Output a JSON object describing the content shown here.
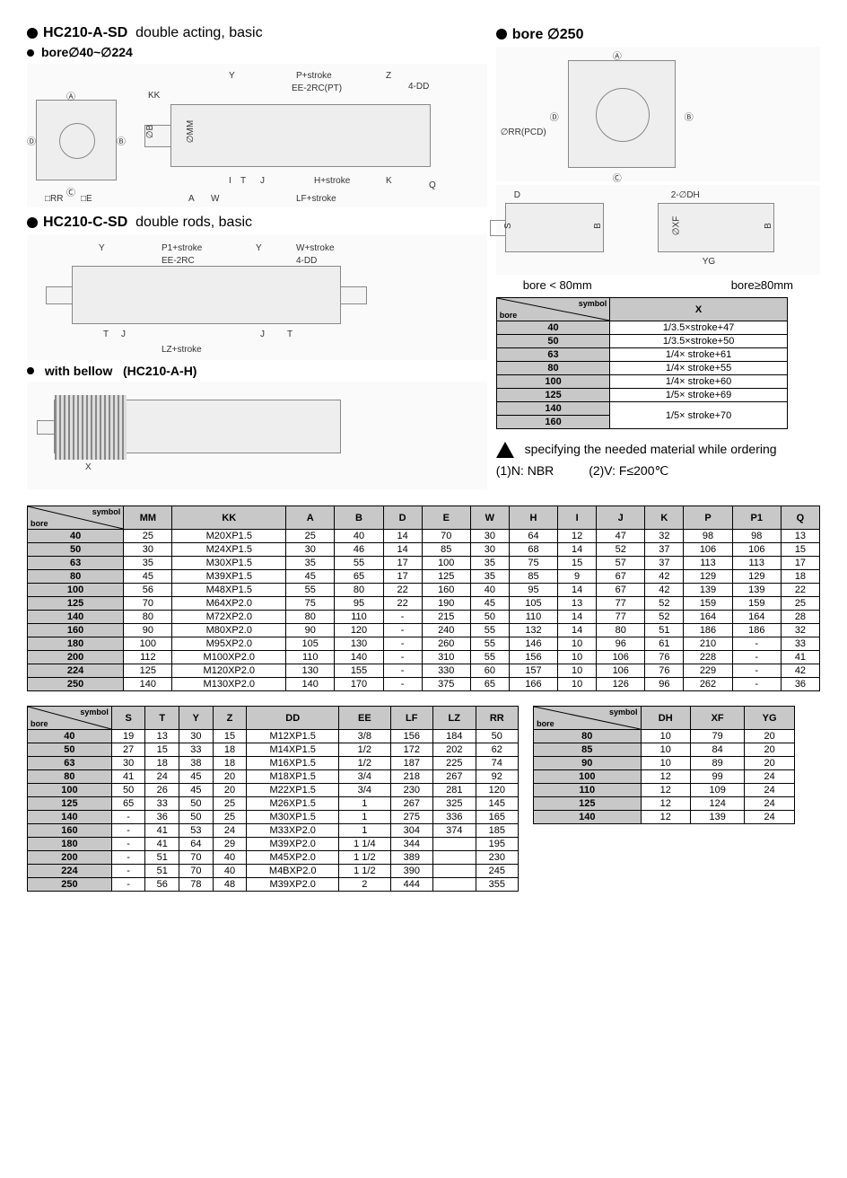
{
  "headings": {
    "h1": "HC210-A-SD",
    "h1_sub": "double acting, basic",
    "h1b": "bore∅40~∅224",
    "h2": "HC210-C-SD",
    "h2_sub": "double rods, basic",
    "h3": "with bellow",
    "h3_model": "(HC210-A-H)",
    "r1": "bore ∅250",
    "r2a": "bore < 80mm",
    "r2b": "bore≥80mm"
  },
  "diagram_ann": {
    "kk": "KK",
    "ob": "∅B",
    "omm": "∅MM",
    "rr": "□RR",
    "e": "□E",
    "aw": "A",
    "w": "W",
    "y": "Y",
    "p": "P+stroke",
    "z": "Z",
    "dd": "4-DD",
    "ee": "EE-2RC(PT)",
    "i": "I",
    "t": "T",
    "j": "J",
    "h": "H+stroke",
    "k": "K",
    "lf": "LF+stroke",
    "q": "Q",
    "p1": "P1+stroke",
    "ws": "W+stroke",
    "4dd": "4-DD",
    "ee2": "EE-2RC",
    "lz": "LZ+stroke",
    "x": "X",
    "rrpcd": "∅RR(PCD)",
    "ds": "D",
    "s": "S",
    "b2": "B",
    "2dh": "2-∅DH",
    "xf": "∅XF",
    "yg": "YG",
    "a": "Ⓐ",
    "b": "Ⓑ",
    "c": "Ⓒ",
    "d": "Ⓓ"
  },
  "note": {
    "text": "specifying the needed material while ordering",
    "opt1": "(1)N: NBR",
    "opt2": "(2)V: F≤200℃"
  },
  "small_table": {
    "col_hdr": "X",
    "rows": [
      [
        "40",
        "1/3.5×stroke+47"
      ],
      [
        "50",
        "1/3.5×stroke+50"
      ],
      [
        "63",
        "1/4× stroke+61"
      ],
      [
        "80",
        "1/4× stroke+55"
      ],
      [
        "100",
        "1/4× stroke+60"
      ],
      [
        "125",
        "1/5× stroke+69"
      ],
      [
        "140",
        "1/5× stroke+70"
      ],
      [
        "160",
        ""
      ]
    ]
  },
  "table1": {
    "cols": [
      "MM",
      "KK",
      "A",
      "B",
      "D",
      "E",
      "W",
      "H",
      "I",
      "J",
      "K",
      "P",
      "P1",
      "Q"
    ],
    "rows": [
      [
        "40",
        "25",
        "M20XP1.5",
        "25",
        "40",
        "14",
        "70",
        "30",
        "64",
        "12",
        "47",
        "32",
        "98",
        "98",
        "13"
      ],
      [
        "50",
        "30",
        "M24XP1.5",
        "30",
        "46",
        "14",
        "85",
        "30",
        "68",
        "14",
        "52",
        "37",
        "106",
        "106",
        "15"
      ],
      [
        "63",
        "35",
        "M30XP1.5",
        "35",
        "55",
        "17",
        "100",
        "35",
        "75",
        "15",
        "57",
        "37",
        "113",
        "113",
        "17"
      ],
      [
        "80",
        "45",
        "M39XP1.5",
        "45",
        "65",
        "17",
        "125",
        "35",
        "85",
        "9",
        "67",
        "42",
        "129",
        "129",
        "18"
      ],
      [
        "100",
        "56",
        "M48XP1.5",
        "55",
        "80",
        "22",
        "160",
        "40",
        "95",
        "14",
        "67",
        "42",
        "139",
        "139",
        "22"
      ],
      [
        "125",
        "70",
        "M64XP2.0",
        "75",
        "95",
        "22",
        "190",
        "45",
        "105",
        "13",
        "77",
        "52",
        "159",
        "159",
        "25"
      ],
      [
        "140",
        "80",
        "M72XP2.0",
        "80",
        "110",
        "-",
        "215",
        "50",
        "110",
        "14",
        "77",
        "52",
        "164",
        "164",
        "28"
      ],
      [
        "160",
        "90",
        "M80XP2.0",
        "90",
        "120",
        "-",
        "240",
        "55",
        "132",
        "14",
        "80",
        "51",
        "186",
        "186",
        "32"
      ],
      [
        "180",
        "100",
        "M95XP2.0",
        "105",
        "130",
        "-",
        "260",
        "55",
        "146",
        "10",
        "96",
        "61",
        "210",
        "-",
        "33"
      ],
      [
        "200",
        "112",
        "M100XP2.0",
        "110",
        "140",
        "-",
        "310",
        "55",
        "156",
        "10",
        "106",
        "76",
        "228",
        "-",
        "41"
      ],
      [
        "224",
        "125",
        "M120XP2.0",
        "130",
        "155",
        "-",
        "330",
        "60",
        "157",
        "10",
        "106",
        "76",
        "229",
        "-",
        "42"
      ],
      [
        "250",
        "140",
        "M130XP2.0",
        "140",
        "170",
        "-",
        "375",
        "65",
        "166",
        "10",
        "126",
        "96",
        "262",
        "-",
        "36"
      ]
    ]
  },
  "table2": {
    "cols": [
      "S",
      "T",
      "Y",
      "Z",
      "DD",
      "EE",
      "LF",
      "LZ",
      "RR"
    ],
    "rows": [
      [
        "40",
        "19",
        "13",
        "30",
        "15",
        "M12XP1.5",
        "3/8",
        "156",
        "184",
        "50"
      ],
      [
        "50",
        "27",
        "15",
        "33",
        "18",
        "M14XP1.5",
        "1/2",
        "172",
        "202",
        "62"
      ],
      [
        "63",
        "30",
        "18",
        "38",
        "18",
        "M16XP1.5",
        "1/2",
        "187",
        "225",
        "74"
      ],
      [
        "80",
        "41",
        "24",
        "45",
        "20",
        "M18XP1.5",
        "3/4",
        "218",
        "267",
        "92"
      ],
      [
        "100",
        "50",
        "26",
        "45",
        "20",
        "M22XP1.5",
        "3/4",
        "230",
        "281",
        "120"
      ],
      [
        "125",
        "65",
        "33",
        "50",
        "25",
        "M26XP1.5",
        "1",
        "267",
        "325",
        "145"
      ],
      [
        "140",
        "-",
        "36",
        "50",
        "25",
        "M30XP1.5",
        "1",
        "275",
        "336",
        "165"
      ],
      [
        "160",
        "-",
        "41",
        "53",
        "24",
        "M33XP2.0",
        "1",
        "304",
        "374",
        "185"
      ],
      [
        "180",
        "-",
        "41",
        "64",
        "29",
        "M39XP2.0",
        "1 1/4",
        "344",
        "",
        "195"
      ],
      [
        "200",
        "-",
        "51",
        "70",
        "40",
        "M45XP2.0",
        "1 1/2",
        "389",
        "",
        "230"
      ],
      [
        "224",
        "-",
        "51",
        "70",
        "40",
        "M4BXP2.0",
        "1 1/2",
        "390",
        "",
        "245"
      ],
      [
        "250",
        "-",
        "56",
        "78",
        "48",
        "M39XP2.0",
        "2",
        "444",
        "",
        "355"
      ]
    ]
  },
  "table3": {
    "cols": [
      "DH",
      "XF",
      "YG"
    ],
    "rows": [
      [
        "80",
        "10",
        "79",
        "20"
      ],
      [
        "85",
        "10",
        "84",
        "20"
      ],
      [
        "90",
        "10",
        "89",
        "20"
      ],
      [
        "100",
        "12",
        "99",
        "24"
      ],
      [
        "110",
        "12",
        "109",
        "24"
      ],
      [
        "125",
        "12",
        "124",
        "24"
      ],
      [
        "140",
        "12",
        "139",
        "24"
      ]
    ]
  },
  "corner": {
    "top": "symbol",
    "bot": "bore"
  }
}
